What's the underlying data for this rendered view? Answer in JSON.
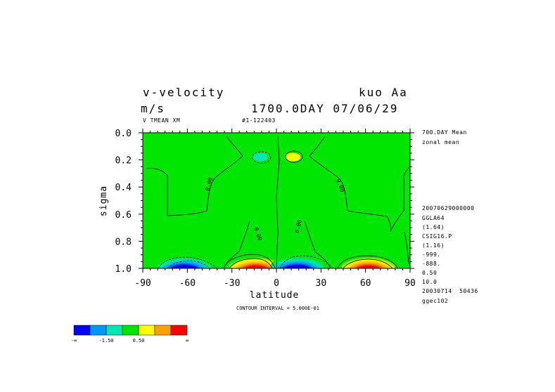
{
  "header": {
    "title_left": "v-velocity",
    "title_right": "kuo Aa",
    "units": "m/s",
    "time": "1700.0DAY 07/06/29",
    "sub_left": "V TMEAN XM",
    "sub_right": "#1-122403"
  },
  "right_info": {
    "lines_top": [
      "700.DAY Mean",
      "zonal mean"
    ],
    "lines_bottom": [
      "20070629000000",
      "GGLA64",
      "(1.64)",
      "CSIG16.P",
      "(1.16)",
      "-999.",
      "-888.",
      "0.50",
      "10.0",
      "20030714  50436",
      "ggec102"
    ]
  },
  "footer": {
    "contour_interval": "CONTOUR INTERVAL = 5.000E-01"
  },
  "colors": {
    "background_field": "#00e600",
    "blue": "#0000ff",
    "light_blue": "#0096ff",
    "cyan": "#00e6b4",
    "green": "#00e600",
    "yellow": "#ffff00",
    "orange": "#ffa000",
    "red": "#ff0000"
  },
  "colorbar": {
    "colors": [
      "#0000ff",
      "#0096ff",
      "#00e6b4",
      "#00e600",
      "#ffff00",
      "#ffa000",
      "#ff0000"
    ],
    "labels": [
      "-∞",
      "-1.50",
      "0.50",
      "∞"
    ]
  },
  "chart_data": {
    "type": "heatmap",
    "title": "v-velocity",
    "xlabel": "latitude",
    "ylabel": "sigma",
    "xlim": [
      -90,
      90
    ],
    "ylim": [
      1.0,
      0.0
    ],
    "x_ticks": [
      "-90",
      "-60",
      "-30",
      "0",
      "30",
      "60",
      "90"
    ],
    "y_ticks": [
      "0.0",
      "0.2",
      "0.4",
      "0.6",
      "0.8",
      "1.0"
    ],
    "contour_labels": [
      "0.00",
      "0.00",
      "0.00",
      "0.00"
    ],
    "features": [
      {
        "lat": -62,
        "sigma": 0.98,
        "sign": "negative",
        "level": "blue"
      },
      {
        "lat": -14,
        "sigma": 0.98,
        "sign": "positive",
        "level": "red"
      },
      {
        "lat": 14,
        "sigma": 0.98,
        "sign": "negative",
        "level": "blue"
      },
      {
        "lat": 62,
        "sigma": 0.98,
        "sign": "positive",
        "level": "red"
      },
      {
        "lat": -11,
        "sigma": 0.18,
        "sign": "negative",
        "level": "cyan"
      },
      {
        "lat": 11,
        "sigma": 0.18,
        "sign": "positive",
        "level": "yellow"
      }
    ]
  }
}
